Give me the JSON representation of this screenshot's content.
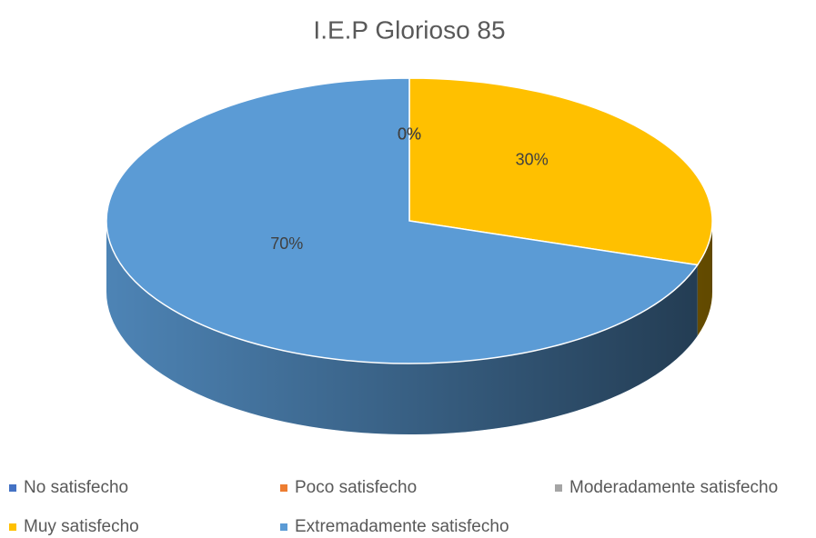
{
  "chart_data": {
    "type": "pie",
    "title": "I.E.P Glorioso 85",
    "categories": [
      "No satisfecho",
      "Poco satisfecho",
      "Moderadamente satisfecho",
      "Muy satisfecho",
      "Extremadamente satisfecho"
    ],
    "values": [
      0,
      0,
      0,
      30,
      70
    ],
    "value_labels": [
      "0%",
      "0%",
      "0%",
      "30%",
      "70%"
    ],
    "colors": [
      "#4472c4",
      "#ed7d31",
      "#a5a5a5",
      "#ffc000",
      "#5b9bd5"
    ],
    "legend": "bottom"
  }
}
